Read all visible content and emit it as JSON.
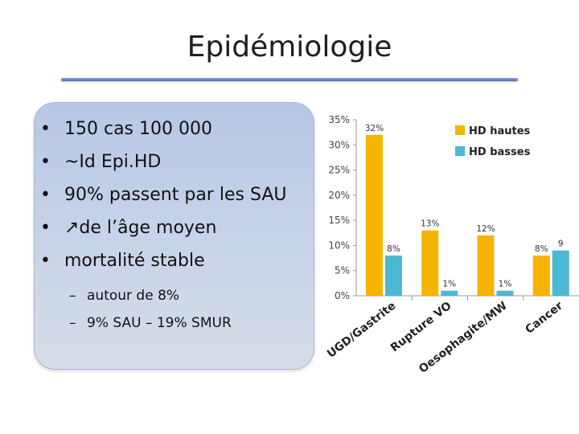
{
  "slide": {
    "title": "Epidémiologie",
    "bullets": [
      "150 cas 100 000",
      "~Id Epi.HD",
      "90% passent par les SAU",
      "↗de l’âge moyen",
      "mortalité stable"
    ],
    "subbullets": [
      "autour de 8%",
      "9% SAU – 19% SMUR"
    ]
  },
  "chart_data": {
    "type": "bar",
    "categories": [
      "UGD/Gastrite",
      "Rupture VO",
      "Oesophagite/MW",
      "Cancer"
    ],
    "series": [
      {
        "name": "HD hautes",
        "values": [
          32,
          13,
          12,
          8
        ],
        "labels": [
          "32%",
          "13%",
          "12%",
          "8%"
        ],
        "color": "#f5b400"
      },
      {
        "name": "HD basses",
        "values": [
          8,
          1,
          1,
          9
        ],
        "labels": [
          "8%",
          "1%",
          "1%",
          "9"
        ],
        "color": "#4db8d4"
      }
    ],
    "yticks": [
      "0%",
      "5%",
      "10%",
      "15%",
      "20%",
      "25%",
      "30%",
      "35%"
    ],
    "ylim": [
      0,
      35
    ],
    "legend": "top-right",
    "grid": false
  }
}
